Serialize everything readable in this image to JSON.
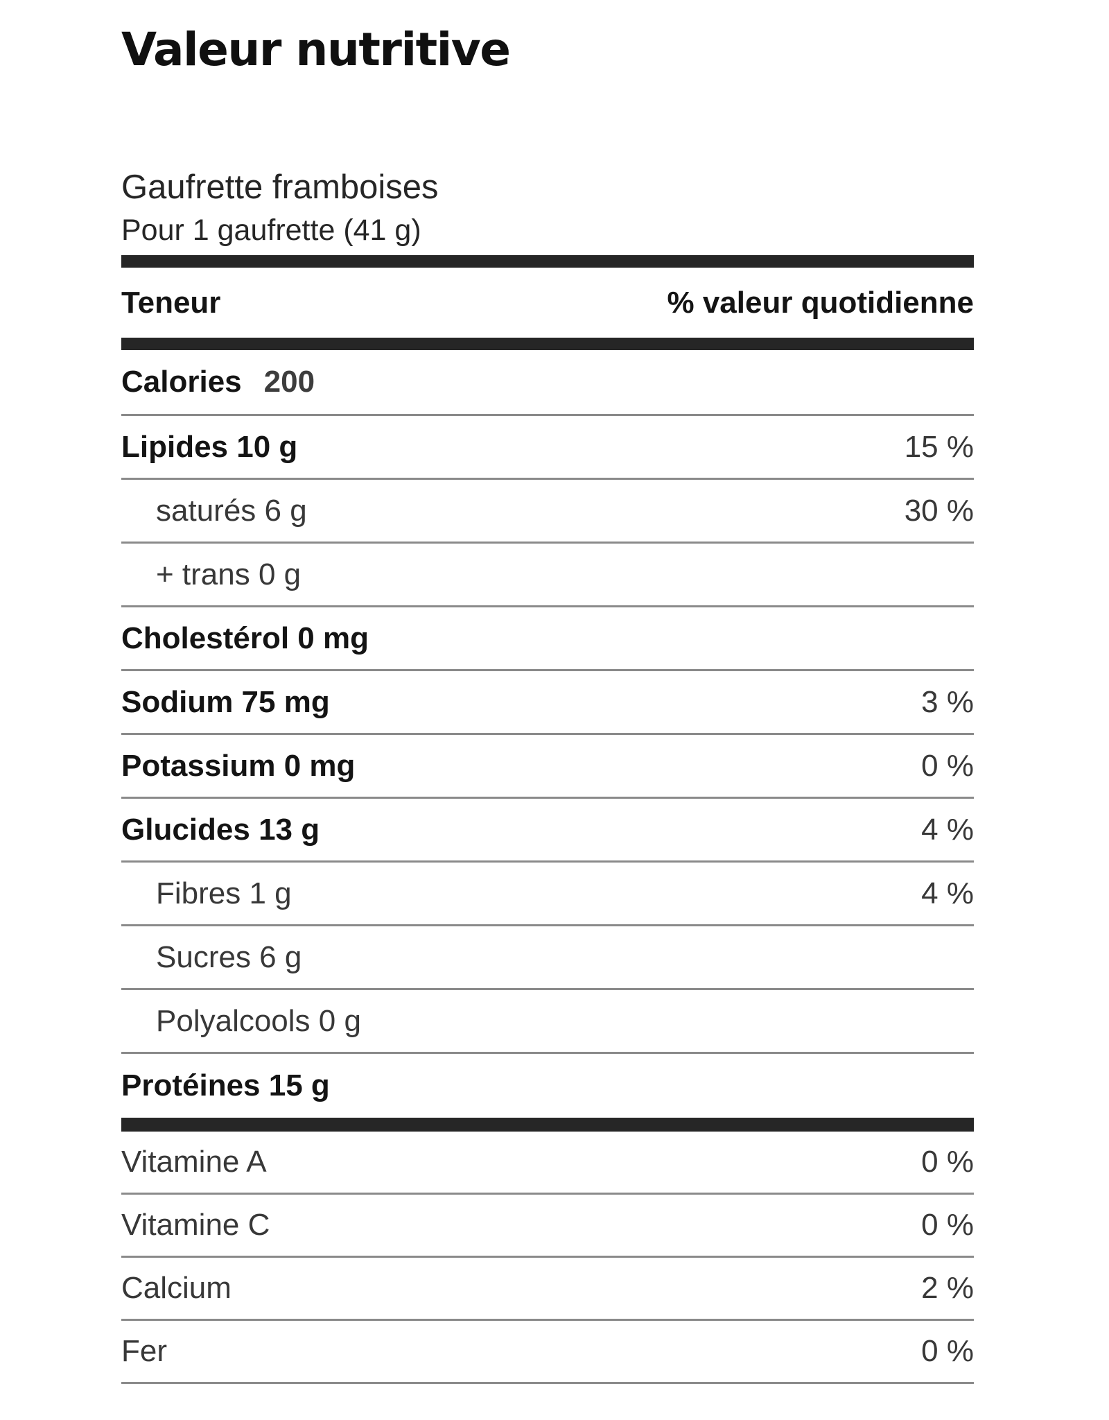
{
  "label": {
    "title": "Valeur nutritive",
    "product_name": "Gaufrette framboises",
    "serving": "Pour 1 gaufrette (41 g)",
    "header": {
      "amount": "Teneur",
      "dv": "% valeur quotidienne"
    },
    "calories": {
      "name": "Calories",
      "value": "200"
    },
    "nutrients": [
      {
        "name": "Lipides 10 g",
        "dv": "15 %"
      },
      {
        "name": "saturés 6 g",
        "dv": "30 %"
      },
      {
        "name": "+ trans 0 g",
        "dv": ""
      },
      {
        "name": "Cholestérol 0 mg",
        "dv": ""
      },
      {
        "name": "Sodium 75 mg",
        "dv": "3 %"
      },
      {
        "name": "Potassium 0 mg",
        "dv": "0 %"
      },
      {
        "name": "Glucides 13 g",
        "dv": "4 %"
      },
      {
        "name": "Fibres 1 g",
        "dv": "4 %"
      },
      {
        "name": "Sucres 6 g",
        "dv": ""
      },
      {
        "name": "Polyalcools 0 g",
        "dv": ""
      },
      {
        "name": "Protéines 15 g",
        "dv": ""
      }
    ],
    "micronutrients": [
      {
        "name": "Vitamine A",
        "dv": "0 %"
      },
      {
        "name": "Vitamine C",
        "dv": "0 %"
      },
      {
        "name": "Calcium",
        "dv": "2 %"
      },
      {
        "name": "Fer",
        "dv": "0 %"
      }
    ],
    "colors": {
      "separator_bar": "#262626",
      "thin_rule": "#8a8a8a",
      "text_primary": "#141414",
      "text_secondary": "#383838",
      "background": "#ffffff"
    }
  }
}
